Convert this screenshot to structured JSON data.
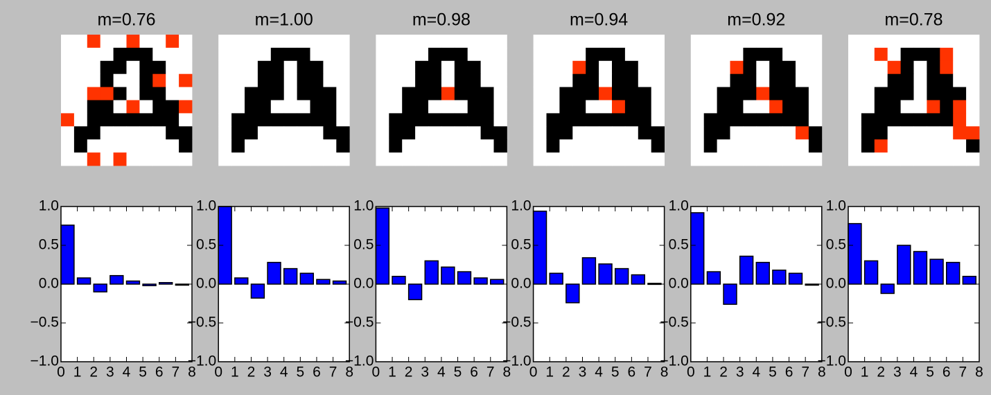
{
  "chart_data": [
    {
      "type": "image",
      "title": "m=0.76",
      "colors": [
        "#ffffff",
        "#000000",
        "#ff3300"
      ],
      "pixels": [
        [
          0,
          0,
          2,
          0,
          0,
          2,
          0,
          0,
          2,
          0
        ],
        [
          0,
          0,
          0,
          0,
          1,
          1,
          1,
          0,
          0,
          0
        ],
        [
          0,
          0,
          0,
          1,
          1,
          0,
          1,
          1,
          0,
          0
        ],
        [
          0,
          0,
          0,
          1,
          0,
          0,
          1,
          2,
          0,
          2
        ],
        [
          0,
          0,
          2,
          2,
          1,
          0,
          1,
          1,
          0,
          0
        ],
        [
          0,
          0,
          1,
          1,
          0,
          2,
          0,
          1,
          1,
          2
        ],
        [
          2,
          0,
          1,
          1,
          1,
          1,
          1,
          1,
          1,
          0
        ],
        [
          0,
          1,
          1,
          0,
          0,
          0,
          0,
          0,
          1,
          1
        ],
        [
          0,
          1,
          0,
          0,
          0,
          0,
          0,
          0,
          0,
          1
        ],
        [
          0,
          0,
          2,
          0,
          2,
          0,
          0,
          0,
          0,
          0
        ]
      ]
    },
    {
      "type": "image",
      "title": "m=1.00",
      "colors": [
        "#ffffff",
        "#000000",
        "#ff3300"
      ],
      "pixels": [
        [
          0,
          0,
          0,
          0,
          0,
          0,
          0,
          0,
          0,
          0
        ],
        [
          0,
          0,
          0,
          0,
          1,
          1,
          1,
          0,
          0,
          0
        ],
        [
          0,
          0,
          0,
          1,
          1,
          0,
          1,
          1,
          0,
          0
        ],
        [
          0,
          0,
          0,
          1,
          1,
          0,
          1,
          1,
          0,
          0
        ],
        [
          0,
          0,
          1,
          1,
          1,
          0,
          1,
          1,
          1,
          0
        ],
        [
          0,
          0,
          1,
          1,
          0,
          0,
          0,
          1,
          1,
          0
        ],
        [
          0,
          1,
          1,
          1,
          1,
          1,
          1,
          1,
          1,
          0
        ],
        [
          0,
          1,
          1,
          0,
          0,
          0,
          0,
          0,
          1,
          1
        ],
        [
          0,
          1,
          0,
          0,
          0,
          0,
          0,
          0,
          0,
          1
        ],
        [
          0,
          0,
          0,
          0,
          0,
          0,
          0,
          0,
          0,
          0
        ]
      ]
    },
    {
      "type": "image",
      "title": "m=0.98",
      "colors": [
        "#ffffff",
        "#000000",
        "#ff3300"
      ],
      "pixels": [
        [
          0,
          0,
          0,
          0,
          0,
          0,
          0,
          0,
          0,
          0
        ],
        [
          0,
          0,
          0,
          0,
          1,
          1,
          1,
          0,
          0,
          0
        ],
        [
          0,
          0,
          0,
          1,
          1,
          0,
          1,
          1,
          0,
          0
        ],
        [
          0,
          0,
          0,
          1,
          1,
          0,
          1,
          1,
          0,
          0
        ],
        [
          0,
          0,
          1,
          1,
          1,
          2,
          1,
          1,
          1,
          0
        ],
        [
          0,
          0,
          1,
          1,
          0,
          0,
          0,
          1,
          1,
          0
        ],
        [
          0,
          1,
          1,
          1,
          1,
          1,
          1,
          1,
          1,
          0
        ],
        [
          0,
          1,
          1,
          0,
          0,
          0,
          0,
          0,
          1,
          1
        ],
        [
          0,
          1,
          0,
          0,
          0,
          0,
          0,
          0,
          0,
          1
        ],
        [
          0,
          0,
          0,
          0,
          0,
          0,
          0,
          0,
          0,
          0
        ]
      ]
    },
    {
      "type": "image",
      "title": "m=0.94",
      "colors": [
        "#ffffff",
        "#000000",
        "#ff3300"
      ],
      "pixels": [
        [
          0,
          0,
          0,
          0,
          0,
          0,
          0,
          0,
          0,
          0
        ],
        [
          0,
          0,
          0,
          0,
          1,
          1,
          1,
          0,
          0,
          0
        ],
        [
          0,
          0,
          0,
          2,
          1,
          0,
          1,
          1,
          0,
          0
        ],
        [
          0,
          0,
          0,
          1,
          1,
          0,
          1,
          1,
          0,
          0
        ],
        [
          0,
          0,
          1,
          1,
          1,
          2,
          1,
          1,
          1,
          0
        ],
        [
          0,
          0,
          1,
          1,
          0,
          0,
          2,
          1,
          1,
          0
        ],
        [
          0,
          1,
          1,
          1,
          1,
          1,
          1,
          1,
          1,
          0
        ],
        [
          0,
          1,
          1,
          0,
          0,
          0,
          0,
          0,
          1,
          1
        ],
        [
          0,
          1,
          0,
          0,
          0,
          0,
          0,
          0,
          0,
          1
        ],
        [
          0,
          0,
          0,
          0,
          0,
          0,
          0,
          0,
          0,
          0
        ]
      ]
    },
    {
      "type": "image",
      "title": "m=0.92",
      "colors": [
        "#ffffff",
        "#000000",
        "#ff3300"
      ],
      "pixels": [
        [
          0,
          0,
          0,
          0,
          0,
          0,
          0,
          0,
          0,
          0
        ],
        [
          0,
          0,
          0,
          0,
          1,
          1,
          1,
          0,
          0,
          0
        ],
        [
          0,
          0,
          0,
          2,
          1,
          0,
          1,
          1,
          0,
          0
        ],
        [
          0,
          0,
          0,
          1,
          1,
          0,
          1,
          1,
          0,
          0
        ],
        [
          0,
          0,
          1,
          1,
          1,
          2,
          1,
          1,
          1,
          0
        ],
        [
          0,
          0,
          1,
          1,
          0,
          0,
          2,
          1,
          1,
          0
        ],
        [
          0,
          1,
          1,
          1,
          1,
          1,
          1,
          1,
          1,
          0
        ],
        [
          0,
          1,
          1,
          0,
          0,
          0,
          0,
          0,
          2,
          1
        ],
        [
          0,
          1,
          0,
          0,
          0,
          0,
          0,
          0,
          0,
          1
        ],
        [
          0,
          0,
          0,
          0,
          0,
          0,
          0,
          0,
          0,
          0
        ]
      ]
    },
    {
      "type": "image",
      "title": "m=0.78",
      "colors": [
        "#ffffff",
        "#000000",
        "#ff3300"
      ],
      "pixels": [
        [
          0,
          0,
          0,
          0,
          0,
          0,
          0,
          0,
          0,
          0
        ],
        [
          0,
          0,
          2,
          0,
          1,
          1,
          1,
          2,
          0,
          0
        ],
        [
          0,
          0,
          0,
          2,
          1,
          0,
          1,
          2,
          0,
          0
        ],
        [
          0,
          0,
          0,
          1,
          1,
          0,
          1,
          1,
          0,
          0
        ],
        [
          0,
          0,
          1,
          1,
          1,
          0,
          1,
          1,
          1,
          0
        ],
        [
          0,
          0,
          1,
          1,
          0,
          0,
          2,
          1,
          2,
          0
        ],
        [
          0,
          1,
          1,
          1,
          1,
          1,
          1,
          1,
          2,
          0
        ],
        [
          0,
          1,
          1,
          0,
          0,
          0,
          0,
          0,
          2,
          2
        ],
        [
          0,
          1,
          2,
          0,
          0,
          0,
          0,
          0,
          0,
          1
        ],
        [
          0,
          0,
          0,
          0,
          0,
          0,
          0,
          0,
          0,
          0
        ]
      ]
    },
    {
      "type": "bar",
      "color": "#0000ff",
      "x": [
        0,
        1,
        2,
        3,
        4,
        5,
        6,
        7
      ],
      "values": [
        0.76,
        0.08,
        -0.1,
        0.11,
        0.04,
        -0.02,
        0.02,
        0.0
      ],
      "xlim": [
        0,
        8
      ],
      "xticks": [
        0,
        1,
        2,
        3,
        4,
        5,
        6,
        7,
        8
      ],
      "ylim": [
        -1,
        1
      ],
      "yticks": [
        {
          "value": -1,
          "label": "−1.0"
        },
        {
          "value": -0.5,
          "label": "−0.5"
        },
        {
          "value": 0,
          "label": "0.0"
        },
        {
          "value": 0.5,
          "label": "0.5"
        },
        {
          "value": 1,
          "label": "1.0"
        }
      ]
    },
    {
      "type": "bar",
      "color": "#0000ff",
      "x": [
        0,
        1,
        2,
        3,
        4,
        5,
        6,
        7
      ],
      "values": [
        1.0,
        0.08,
        -0.18,
        0.28,
        0.2,
        0.14,
        0.06,
        0.04
      ],
      "xlim": [
        0,
        8
      ],
      "xticks": [
        0,
        1,
        2,
        3,
        4,
        5,
        6,
        7,
        8
      ],
      "ylim": [
        -1,
        1
      ],
      "yticks": [
        {
          "value": -1,
          "label": "−1.0"
        },
        {
          "value": -0.5,
          "label": "−0.5"
        },
        {
          "value": 0,
          "label": "0.0"
        },
        {
          "value": 0.5,
          "label": "0.5"
        },
        {
          "value": 1,
          "label": "1.0"
        }
      ]
    },
    {
      "type": "bar",
      "color": "#0000ff",
      "x": [
        0,
        1,
        2,
        3,
        4,
        5,
        6,
        7
      ],
      "values": [
        0.98,
        0.1,
        -0.2,
        0.3,
        0.22,
        0.16,
        0.08,
        0.06
      ],
      "xlim": [
        0,
        8
      ],
      "xticks": [
        0,
        1,
        2,
        3,
        4,
        5,
        6,
        7,
        8
      ],
      "ylim": [
        -1,
        1
      ],
      "yticks": [
        {
          "value": -1,
          "label": "−1.0"
        },
        {
          "value": -0.5,
          "label": "−0.5"
        },
        {
          "value": 0,
          "label": "0.0"
        },
        {
          "value": 0.5,
          "label": "0.5"
        },
        {
          "value": 1,
          "label": "1.0"
        }
      ]
    },
    {
      "type": "bar",
      "color": "#0000ff",
      "x": [
        0,
        1,
        2,
        3,
        4,
        5,
        6,
        7
      ],
      "values": [
        0.94,
        0.14,
        -0.24,
        0.34,
        0.26,
        0.2,
        0.12,
        0.01
      ],
      "xlim": [
        0,
        8
      ],
      "xticks": [
        0,
        1,
        2,
        3,
        4,
        5,
        6,
        7,
        8
      ],
      "ylim": [
        -1,
        1
      ],
      "yticks": [
        {
          "value": -1,
          "label": "−1.0"
        },
        {
          "value": -0.5,
          "label": "−0.5"
        },
        {
          "value": 0,
          "label": "0.0"
        },
        {
          "value": 0.5,
          "label": "0.5"
        },
        {
          "value": 1,
          "label": "1.0"
        }
      ]
    },
    {
      "type": "bar",
      "color": "#0000ff",
      "x": [
        0,
        1,
        2,
        3,
        4,
        5,
        6,
        7
      ],
      "values": [
        0.92,
        0.16,
        -0.26,
        0.36,
        0.28,
        0.18,
        0.14,
        0.0
      ],
      "xlim": [
        0,
        8
      ],
      "xticks": [
        0,
        1,
        2,
        3,
        4,
        5,
        6,
        7,
        8
      ],
      "ylim": [
        -1,
        1
      ],
      "yticks": [
        {
          "value": -1,
          "label": "−1.0"
        },
        {
          "value": -0.5,
          "label": "−0.5"
        },
        {
          "value": 0,
          "label": "0.0"
        },
        {
          "value": 0.5,
          "label": "0.5"
        },
        {
          "value": 1,
          "label": "1.0"
        }
      ]
    },
    {
      "type": "bar",
      "color": "#0000ff",
      "x": [
        0,
        1,
        2,
        3,
        4,
        5,
        6,
        7
      ],
      "values": [
        0.78,
        0.3,
        -0.12,
        0.5,
        0.42,
        0.32,
        0.28,
        0.1
      ],
      "xlim": [
        0,
        8
      ],
      "xticks": [
        0,
        1,
        2,
        3,
        4,
        5,
        6,
        7,
        8
      ],
      "ylim": [
        -1,
        1
      ],
      "yticks": [
        {
          "value": -1,
          "label": "−1.0"
        },
        {
          "value": -0.5,
          "label": "−0.5"
        },
        {
          "value": 0,
          "label": "0.0"
        },
        {
          "value": 0.5,
          "label": "0.5"
        },
        {
          "value": 1,
          "label": "1.0"
        }
      ]
    }
  ]
}
